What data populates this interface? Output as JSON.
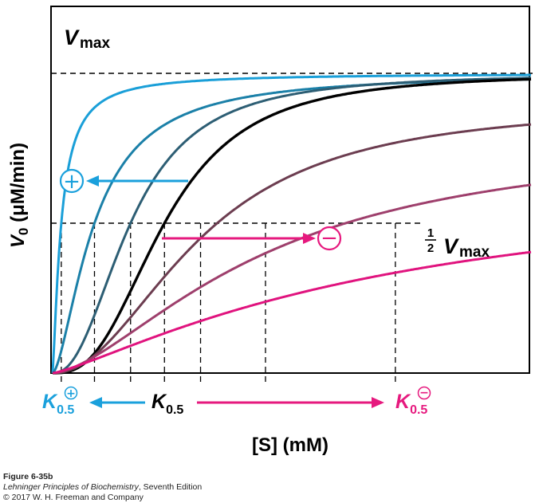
{
  "chart_data": {
    "type": "line",
    "xlabel": "[S] (mM)",
    "ylabel_symbol": "V",
    "ylabel_sub": "0",
    "ylabel_units": " (μM/min)",
    "ylim": [
      0,
      1.0
    ],
    "xlim": [
      0,
      60
    ],
    "grid": false,
    "legend": "none",
    "annotations": {
      "vmax_symbol": "V",
      "vmax_sub": "max",
      "half_num": "1",
      "half_den": "2",
      "half_symbol": "V",
      "half_sub": "max",
      "activator_sign": "+",
      "inhibitor_sign": "−",
      "k_symbol": "K",
      "k_sub": "0.5",
      "k_plus_sup": "+",
      "k_minus_sup": "−"
    },
    "half_vmax_points": [
      1.2,
      5.8,
      10.8,
      15.5,
      20.5,
      29.5,
      47.5
    ],
    "series": [
      {
        "role": "activator",
        "color": "#1a9fd8",
        "k05": 1.2,
        "n": 1.3,
        "vmax": 1.0
      },
      {
        "role": "activator",
        "color": "#1b80a8",
        "k05": 5.8,
        "n": 1.6,
        "vmax": 1.0
      },
      {
        "role": "activator",
        "color": "#2d5e74",
        "k05": 10.8,
        "n": 2.3,
        "vmax": 1.0
      },
      {
        "role": "reference",
        "color": "#000000",
        "k05": 15.5,
        "n": 2.7,
        "vmax": 1.0
      },
      {
        "role": "inhibitor",
        "color": "#6c3d50",
        "k05": 20.5,
        "n": 2.1,
        "vmax": 0.9
      },
      {
        "role": "inhibitor",
        "color": "#9e3f6c",
        "k05": 29.5,
        "n": 1.6,
        "vmax": 0.8
      },
      {
        "role": "inhibitor",
        "color": "#e0137e",
        "k05": 47.5,
        "n": 1.25,
        "vmax": 0.67
      }
    ],
    "colors": {
      "activator": "#1aa0dc",
      "inhibitor": "#e6197e",
      "axis": "#000000"
    }
  },
  "caption": {
    "figure": "Figure 6-35b",
    "book_title": "Lehninger Principles of Biochemistry",
    "book_edition": ", Seventh Edition",
    "copyright": "© 2017 W. H. Freeman and Company"
  }
}
